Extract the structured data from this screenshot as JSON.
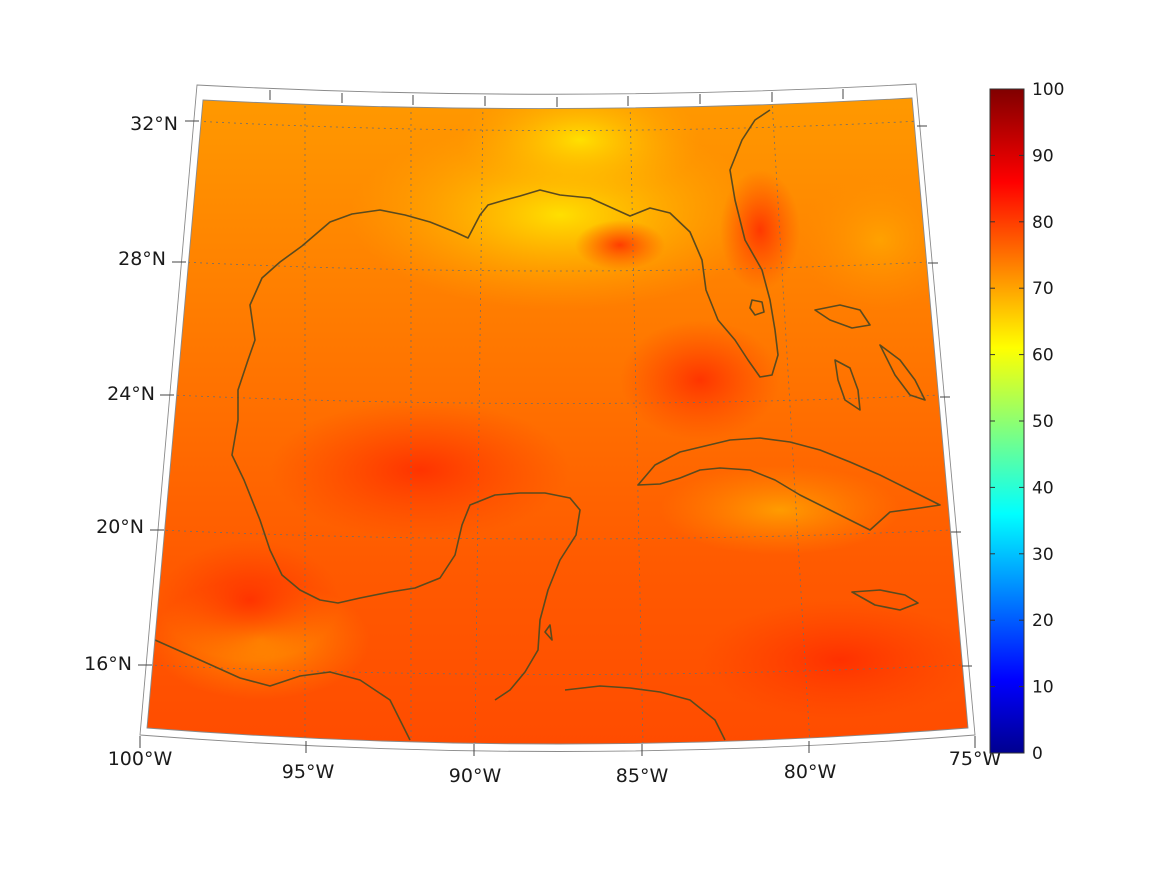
{
  "map": {
    "projection": "conic",
    "lat_labels": [
      {
        "text": "32°N"
      },
      {
        "text": "28°N"
      },
      {
        "text": "24°N"
      },
      {
        "text": "20°N"
      },
      {
        "text": "16°N"
      }
    ],
    "lon_labels": [
      {
        "text": "100°W"
      },
      {
        "text": "95°W"
      },
      {
        "text": "90°W"
      },
      {
        "text": "85°W"
      },
      {
        "text": "80°W"
      },
      {
        "text": "75°W"
      }
    ],
    "coastline_color": "#5a4a1e",
    "regions": [
      "Gulf of Mexico",
      "Florida",
      "Cuba",
      "Yucatan Peninsula",
      "Bahamas",
      "Jamaica",
      "Central America"
    ]
  },
  "colorbar": {
    "colormap": "jet",
    "min": 0,
    "max": 100,
    "tick_labels": [
      "100",
      "90",
      "80",
      "70",
      "60",
      "50",
      "40",
      "30",
      "20",
      "10",
      "0"
    ]
  }
}
